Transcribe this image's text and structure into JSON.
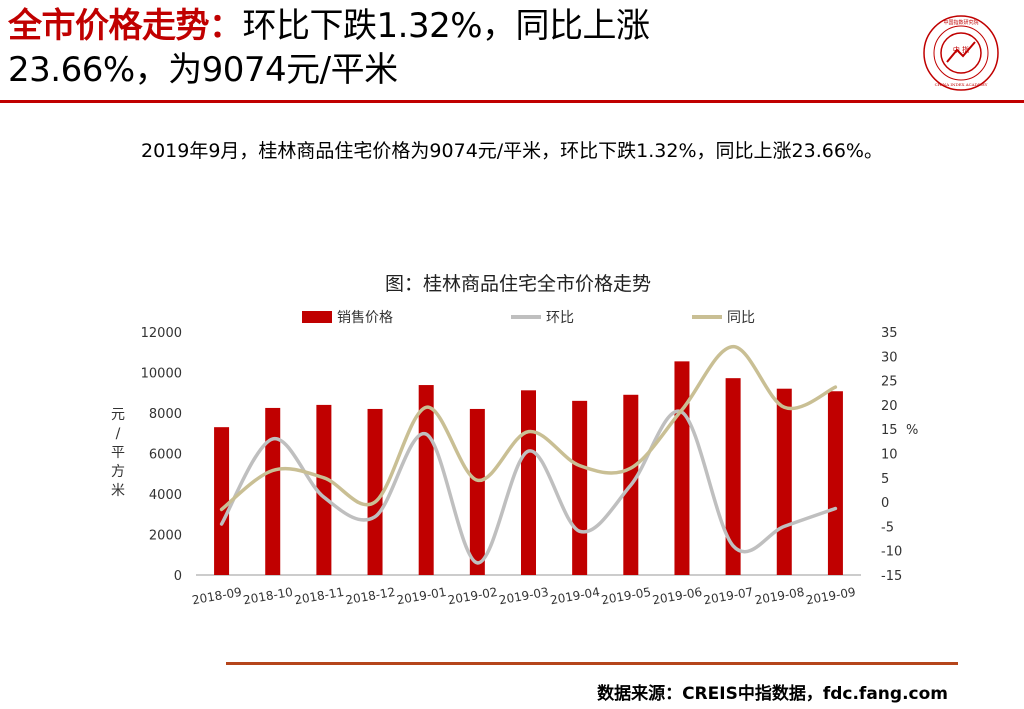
{
  "header": {
    "title_bold": "全市价格走势：",
    "title_line1_rest": "环比下跌1.32%，同比上涨",
    "title_line2": "23.66%，为9074元/平米"
  },
  "logo": {
    "center_text": "中 指",
    "ring_text": "中国指数研究院",
    "ring_text_en": "CHINA INDEX ACADEMY"
  },
  "summary": "2019年9月，桂林商品住宅价格为9074元/平米，环比下跌1.32%，同比上涨23.66%。",
  "footer": {
    "source": "数据来源：CREIS中指数据，fdc.fang.com"
  },
  "colors": {
    "accent": "#c00000",
    "bar": "#c00000",
    "mom": "#bfbfbf",
    "yoy": "#c9bf94",
    "rule": "#b5451b"
  },
  "chart_data": {
    "type": "bar",
    "title": "图：桂林商品住宅全市价格走势",
    "categories": [
      "2018-09",
      "2018-10",
      "2018-11",
      "2018-12",
      "2019-01",
      "2019-02",
      "2019-03",
      "2019-04",
      "2019-05",
      "2019-06",
      "2019-07",
      "2019-08",
      "2019-09"
    ],
    "series": [
      {
        "name": "销售价格",
        "type": "bar",
        "axis": "left",
        "values": [
          7300,
          8250,
          8400,
          8200,
          9380,
          8200,
          9120,
          8600,
          8900,
          10550,
          9720,
          9200,
          9074
        ]
      },
      {
        "name": "环比",
        "type": "line",
        "axis": "right",
        "values": [
          -4.5,
          13,
          1,
          -3,
          14,
          -12.5,
          10.5,
          -6,
          3.5,
          18.5,
          -9,
          -5,
          -1.32
        ]
      },
      {
        "name": "同比",
        "type": "line",
        "axis": "right",
        "values": [
          -1.5,
          6.5,
          5,
          0,
          19.5,
          4.5,
          14.5,
          7.5,
          7,
          19,
          32,
          19.5,
          23.66
        ]
      }
    ],
    "ylabel": "元/平方米",
    "y2label": "%",
    "ylim": [
      0,
      12000
    ],
    "yticks": [
      0,
      2000,
      4000,
      6000,
      8000,
      10000,
      12000
    ],
    "y2lim": [
      -15,
      35
    ],
    "y2ticks": [
      -15,
      -10,
      -5,
      0,
      5,
      10,
      15,
      20,
      25,
      30,
      35
    ],
    "legend": "top",
    "grid": false
  }
}
